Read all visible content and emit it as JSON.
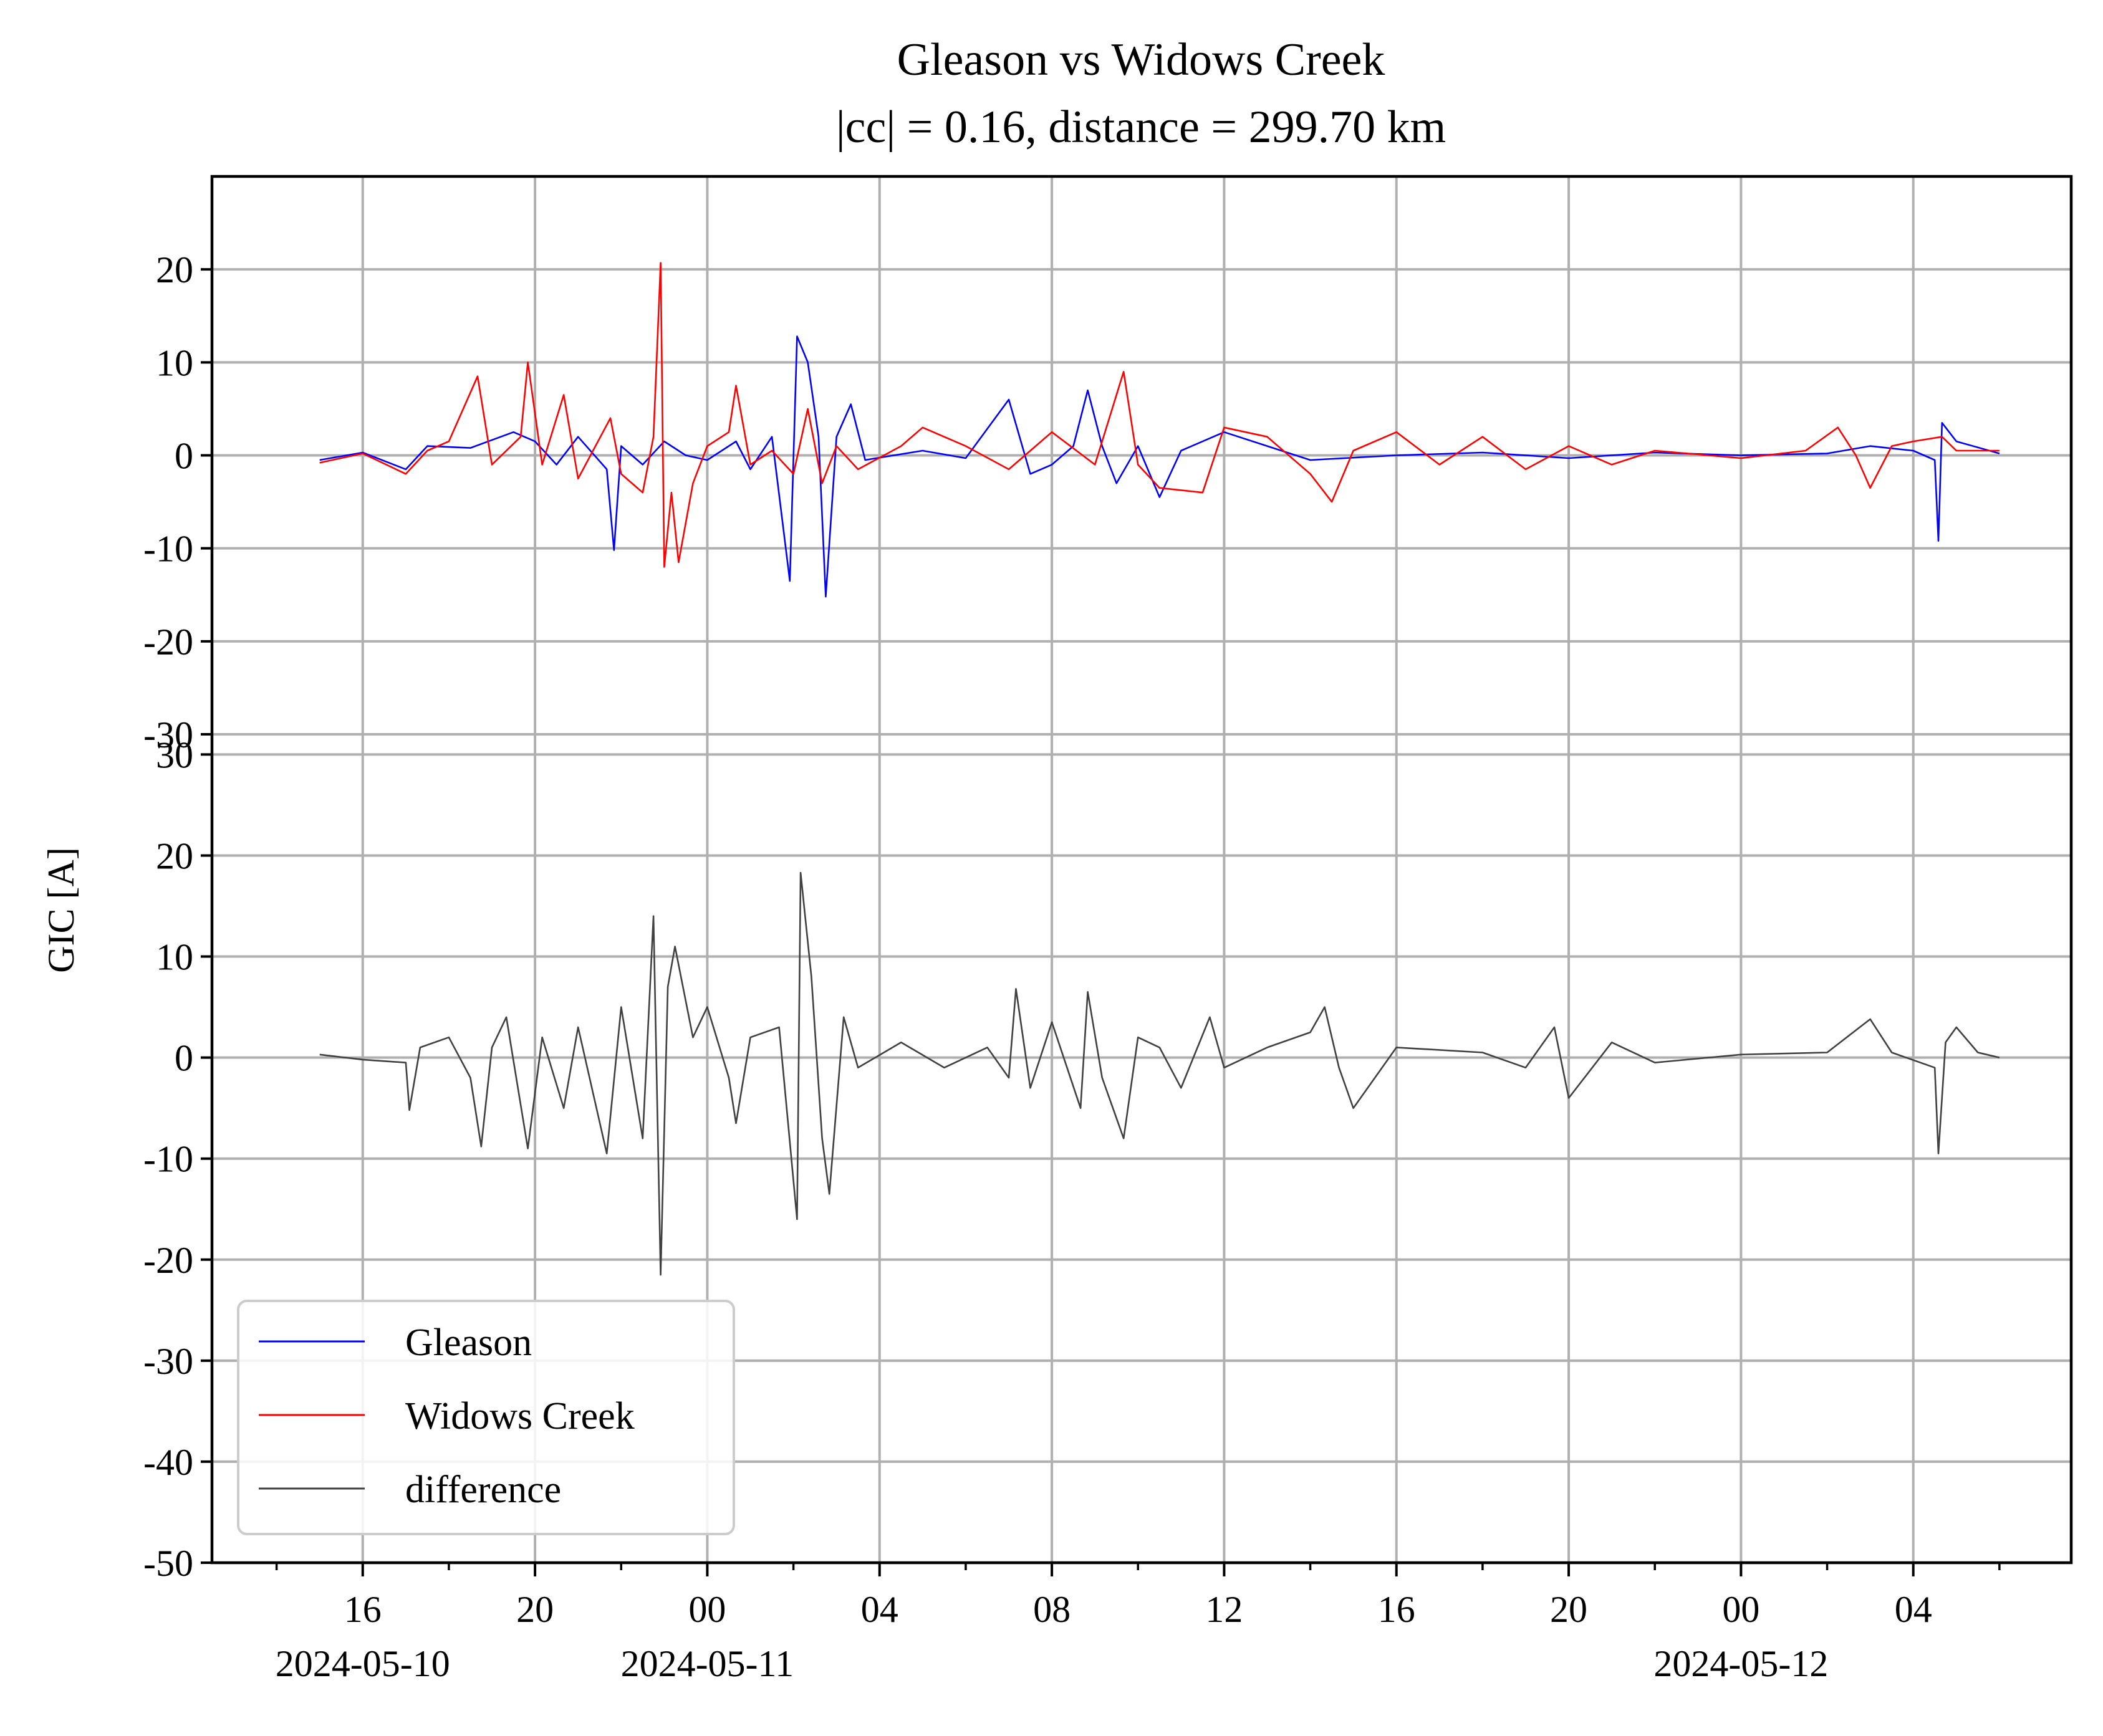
{
  "chart_data": {
    "type": "line",
    "title": "Gleason vs Widows Creek",
    "subtitle": "|cc| = 0.16, distance = 299.70 km",
    "ylabel": "GIC [A]",
    "xlabel": "",
    "x_range": [
      "2024-05-10 12:30",
      "2024-05-12 07:40"
    ],
    "x_ticks": [
      {
        "t": "2024-05-10 16:00",
        "label": "16",
        "date": "2024-05-10"
      },
      {
        "t": "2024-05-10 20:00",
        "label": "20",
        "date": ""
      },
      {
        "t": "2024-05-11 00:00",
        "label": "00",
        "date": "2024-05-11"
      },
      {
        "t": "2024-05-11 04:00",
        "label": "04",
        "date": ""
      },
      {
        "t": "2024-05-11 08:00",
        "label": "08",
        "date": ""
      },
      {
        "t": "2024-05-11 12:00",
        "label": "12",
        "date": ""
      },
      {
        "t": "2024-05-11 16:00",
        "label": "16",
        "date": ""
      },
      {
        "t": "2024-05-11 20:00",
        "label": "20",
        "date": ""
      },
      {
        "t": "2024-05-12 00:00",
        "label": "00",
        "date": "2024-05-12"
      },
      {
        "t": "2024-05-12 04:00",
        "label": "04",
        "date": ""
      }
    ],
    "grid": true,
    "legend": {
      "placement": "lower-left",
      "entries": [
        "Gleason",
        "Widows Creek",
        "difference"
      ]
    },
    "colors": {
      "Gleason": "#0000ff",
      "Widows Creek": "#ff0000",
      "difference": "#404040"
    },
    "panels": [
      {
        "name": "top",
        "ylim": [
          -30,
          30
        ],
        "yticks": [
          20,
          10,
          0,
          -10,
          -20,
          -30
        ],
        "series": [
          {
            "name": "Gleason",
            "color": "#0000ff",
            "points": [
              [
                "2024-05-10 15:00",
                -0.5
              ],
              [
                "2024-05-10 16:00",
                0.3
              ],
              [
                "2024-05-10 17:00",
                -1.5
              ],
              [
                "2024-05-10 17:30",
                1.0
              ],
              [
                "2024-05-10 18:30",
                0.8
              ],
              [
                "2024-05-10 19:30",
                2.5
              ],
              [
                "2024-05-10 20:00",
                1.5
              ],
              [
                "2024-05-10 20:30",
                -1.0
              ],
              [
                "2024-05-10 21:00",
                2.0
              ],
              [
                "2024-05-10 21:40",
                -1.5
              ],
              [
                "2024-05-10 21:50",
                -10.2
              ],
              [
                "2024-05-10 22:00",
                1.0
              ],
              [
                "2024-05-10 22:30",
                -1.0
              ],
              [
                "2024-05-10 23:00",
                1.5
              ],
              [
                "2024-05-10 23:30",
                0.0
              ],
              [
                "2024-05-11 00:00",
                -0.5
              ],
              [
                "2024-05-11 00:40",
                1.5
              ],
              [
                "2024-05-11 01:00",
                -1.5
              ],
              [
                "2024-05-11 01:30",
                2.0
              ],
              [
                "2024-05-11 01:55",
                -13.5
              ],
              [
                "2024-05-11 02:05",
                12.8
              ],
              [
                "2024-05-11 02:20",
                10.0
              ],
              [
                "2024-05-11 02:35",
                2.0
              ],
              [
                "2024-05-11 02:45",
                -15.2
              ],
              [
                "2024-05-11 03:00",
                2.0
              ],
              [
                "2024-05-11 03:20",
                5.5
              ],
              [
                "2024-05-11 03:40",
                -0.5
              ],
              [
                "2024-05-11 05:00",
                0.5
              ],
              [
                "2024-05-11 06:00",
                -0.3
              ],
              [
                "2024-05-11 07:00",
                6.0
              ],
              [
                "2024-05-11 07:30",
                -2.0
              ],
              [
                "2024-05-11 08:00",
                -1.0
              ],
              [
                "2024-05-11 08:30",
                1.0
              ],
              [
                "2024-05-11 08:50",
                7.0
              ],
              [
                "2024-05-11 09:10",
                1.0
              ],
              [
                "2024-05-11 09:30",
                -3.0
              ],
              [
                "2024-05-11 10:00",
                1.0
              ],
              [
                "2024-05-11 10:30",
                -4.5
              ],
              [
                "2024-05-11 11:00",
                0.5
              ],
              [
                "2024-05-11 12:00",
                2.5
              ],
              [
                "2024-05-11 13:00",
                1.0
              ],
              [
                "2024-05-11 14:00",
                -0.5
              ],
              [
                "2024-05-11 16:00",
                0.0
              ],
              [
                "2024-05-11 18:00",
                0.3
              ],
              [
                "2024-05-11 20:00",
                -0.3
              ],
              [
                "2024-05-11 22:00",
                0.3
              ],
              [
                "2024-05-12 00:00",
                0.0
              ],
              [
                "2024-05-12 02:00",
                0.2
              ],
              [
                "2024-05-12 03:00",
                1.0
              ],
              [
                "2024-05-12 04:00",
                0.5
              ],
              [
                "2024-05-12 04:30",
                -0.5
              ],
              [
                "2024-05-12 04:35",
                -9.2
              ],
              [
                "2024-05-12 04:40",
                3.5
              ],
              [
                "2024-05-12 05:00",
                1.5
              ],
              [
                "2024-05-12 06:00",
                0.2
              ]
            ]
          },
          {
            "name": "Widows Creek",
            "color": "#ff0000",
            "points": [
              [
                "2024-05-10 15:00",
                -0.8
              ],
              [
                "2024-05-10 16:00",
                0.2
              ],
              [
                "2024-05-10 17:00",
                -2.0
              ],
              [
                "2024-05-10 17:30",
                0.5
              ],
              [
                "2024-05-10 18:00",
                1.5
              ],
              [
                "2024-05-10 18:40",
                8.5
              ],
              [
                "2024-05-10 19:00",
                -1.0
              ],
              [
                "2024-05-10 19:40",
                2.0
              ],
              [
                "2024-05-10 19:50",
                10.0
              ],
              [
                "2024-05-10 20:10",
                -1.0
              ],
              [
                "2024-05-10 20:40",
                6.5
              ],
              [
                "2024-05-10 21:00",
                -2.5
              ],
              [
                "2024-05-10 21:45",
                4.0
              ],
              [
                "2024-05-10 22:00",
                -2.0
              ],
              [
                "2024-05-10 22:30",
                -4.0
              ],
              [
                "2024-05-10 22:45",
                2.0
              ],
              [
                "2024-05-10 22:55",
                20.7
              ],
              [
                "2024-05-10 23:00",
                -12.0
              ],
              [
                "2024-05-10 23:10",
                -4.0
              ],
              [
                "2024-05-10 23:20",
                -11.5
              ],
              [
                "2024-05-10 23:40",
                -3.0
              ],
              [
                "2024-05-11 00:00",
                1.0
              ],
              [
                "2024-05-11 00:30",
                2.5
              ],
              [
                "2024-05-11 00:40",
                7.5
              ],
              [
                "2024-05-11 01:00",
                -1.0
              ],
              [
                "2024-05-11 01:30",
                0.5
              ],
              [
                "2024-05-11 02:00",
                -2.0
              ],
              [
                "2024-05-11 02:20",
                5.0
              ],
              [
                "2024-05-11 02:40",
                -3.0
              ],
              [
                "2024-05-11 03:00",
                1.0
              ],
              [
                "2024-05-11 03:30",
                -1.5
              ],
              [
                "2024-05-11 04:30",
                1.0
              ],
              [
                "2024-05-11 05:00",
                3.0
              ],
              [
                "2024-05-11 06:00",
                1.0
              ],
              [
                "2024-05-11 07:00",
                -1.5
              ],
              [
                "2024-05-11 08:00",
                2.5
              ],
              [
                "2024-05-11 09:00",
                -1.0
              ],
              [
                "2024-05-11 09:40",
                9.0
              ],
              [
                "2024-05-11 10:00",
                -1.0
              ],
              [
                "2024-05-11 10:30",
                -3.5
              ],
              [
                "2024-05-11 11:30",
                -4.0
              ],
              [
                "2024-05-11 12:00",
                3.0
              ],
              [
                "2024-05-11 13:00",
                2.0
              ],
              [
                "2024-05-11 14:00",
                -2.0
              ],
              [
                "2024-05-11 14:30",
                -5.0
              ],
              [
                "2024-05-11 15:00",
                0.5
              ],
              [
                "2024-05-11 16:00",
                2.5
              ],
              [
                "2024-05-11 17:00",
                -1.0
              ],
              [
                "2024-05-11 18:00",
                2.0
              ],
              [
                "2024-05-11 19:00",
                -1.5
              ],
              [
                "2024-05-11 20:00",
                1.0
              ],
              [
                "2024-05-11 21:00",
                -1.0
              ],
              [
                "2024-05-11 22:00",
                0.5
              ],
              [
                "2024-05-12 00:00",
                -0.3
              ],
              [
                "2024-05-12 01:30",
                0.5
              ],
              [
                "2024-05-12 02:15",
                3.0
              ],
              [
                "2024-05-12 02:40",
                0.0
              ],
              [
                "2024-05-12 03:00",
                -3.5
              ],
              [
                "2024-05-12 03:30",
                1.0
              ],
              [
                "2024-05-12 04:00",
                1.5
              ],
              [
                "2024-05-12 04:40",
                2.0
              ],
              [
                "2024-05-12 05:00",
                0.5
              ],
              [
                "2024-05-12 06:00",
                0.5
              ]
            ]
          }
        ]
      },
      {
        "name": "bottom",
        "ylim": [
          -50,
          32
        ],
        "yticks": [
          30,
          20,
          10,
          0,
          -10,
          -20,
          -30,
          -40,
          -50
        ],
        "series": [
          {
            "name": "difference",
            "color": "#404040",
            "points": [
              [
                "2024-05-10 15:00",
                0.3
              ],
              [
                "2024-05-10 16:00",
                -0.2
              ],
              [
                "2024-05-10 17:00",
                -0.5
              ],
              [
                "2024-05-10 17:05",
                -5.2
              ],
              [
                "2024-05-10 17:20",
                1.0
              ],
              [
                "2024-05-10 18:00",
                2.0
              ],
              [
                "2024-05-10 18:30",
                -2.0
              ],
              [
                "2024-05-10 18:45",
                -8.8
              ],
              [
                "2024-05-10 19:00",
                1.0
              ],
              [
                "2024-05-10 19:20",
                4.0
              ],
              [
                "2024-05-10 19:50",
                -9.0
              ],
              [
                "2024-05-10 20:10",
                2.0
              ],
              [
                "2024-05-10 20:40",
                -5.0
              ],
              [
                "2024-05-10 21:00",
                3.0
              ],
              [
                "2024-05-10 21:40",
                -9.5
              ],
              [
                "2024-05-10 22:00",
                5.0
              ],
              [
                "2024-05-10 22:30",
                -8.0
              ],
              [
                "2024-05-10 22:45",
                14.0
              ],
              [
                "2024-05-10 22:55",
                -21.5
              ],
              [
                "2024-05-10 23:05",
                7.0
              ],
              [
                "2024-05-10 23:15",
                11.0
              ],
              [
                "2024-05-10 23:40",
                2.0
              ],
              [
                "2024-05-11 00:00",
                5.0
              ],
              [
                "2024-05-11 00:30",
                -2.0
              ],
              [
                "2024-05-11 00:40",
                -6.5
              ],
              [
                "2024-05-11 01:00",
                2.0
              ],
              [
                "2024-05-11 01:40",
                3.0
              ],
              [
                "2024-05-11 02:05",
                -16.0
              ],
              [
                "2024-05-11 02:10",
                18.3
              ],
              [
                "2024-05-11 02:25",
                8.0
              ],
              [
                "2024-05-11 02:40",
                -8.0
              ],
              [
                "2024-05-11 02:50",
                -13.5
              ],
              [
                "2024-05-11 03:10",
                4.0
              ],
              [
                "2024-05-11 03:30",
                -1.0
              ],
              [
                "2024-05-11 04:30",
                1.5
              ],
              [
                "2024-05-11 05:30",
                -1.0
              ],
              [
                "2024-05-11 06:30",
                1.0
              ],
              [
                "2024-05-11 07:00",
                -2.0
              ],
              [
                "2024-05-11 07:10",
                6.8
              ],
              [
                "2024-05-11 07:30",
                -3.0
              ],
              [
                "2024-05-11 08:00",
                3.5
              ],
              [
                "2024-05-11 08:40",
                -5.0
              ],
              [
                "2024-05-11 08:50",
                6.5
              ],
              [
                "2024-05-11 09:10",
                -2.0
              ],
              [
                "2024-05-11 09:40",
                -8.0
              ],
              [
                "2024-05-11 10:00",
                2.0
              ],
              [
                "2024-05-11 10:30",
                1.0
              ],
              [
                "2024-05-11 11:00",
                -3.0
              ],
              [
                "2024-05-11 11:40",
                4.0
              ],
              [
                "2024-05-11 12:00",
                -1.0
              ],
              [
                "2024-05-11 13:00",
                1.0
              ],
              [
                "2024-05-11 14:00",
                2.5
              ],
              [
                "2024-05-11 14:20",
                5.0
              ],
              [
                "2024-05-11 14:40",
                -1.0
              ],
              [
                "2024-05-11 15:00",
                -5.0
              ],
              [
                "2024-05-11 16:00",
                1.0
              ],
              [
                "2024-05-11 18:00",
                0.5
              ],
              [
                "2024-05-11 19:00",
                -1.0
              ],
              [
                "2024-05-11 19:40",
                3.0
              ],
              [
                "2024-05-11 20:00",
                -4.0
              ],
              [
                "2024-05-11 21:00",
                1.5
              ],
              [
                "2024-05-11 22:00",
                -0.5
              ],
              [
                "2024-05-12 00:00",
                0.3
              ],
              [
                "2024-05-12 02:00",
                0.5
              ],
              [
                "2024-05-12 03:00",
                3.8
              ],
              [
                "2024-05-12 03:30",
                0.5
              ],
              [
                "2024-05-12 04:30",
                -1.0
              ],
              [
                "2024-05-12 04:35",
                -9.5
              ],
              [
                "2024-05-12 04:45",
                1.5
              ],
              [
                "2024-05-12 05:00",
                3.0
              ],
              [
                "2024-05-12 05:30",
                0.5
              ],
              [
                "2024-05-12 06:00",
                0.0
              ]
            ]
          }
        ]
      }
    ]
  }
}
